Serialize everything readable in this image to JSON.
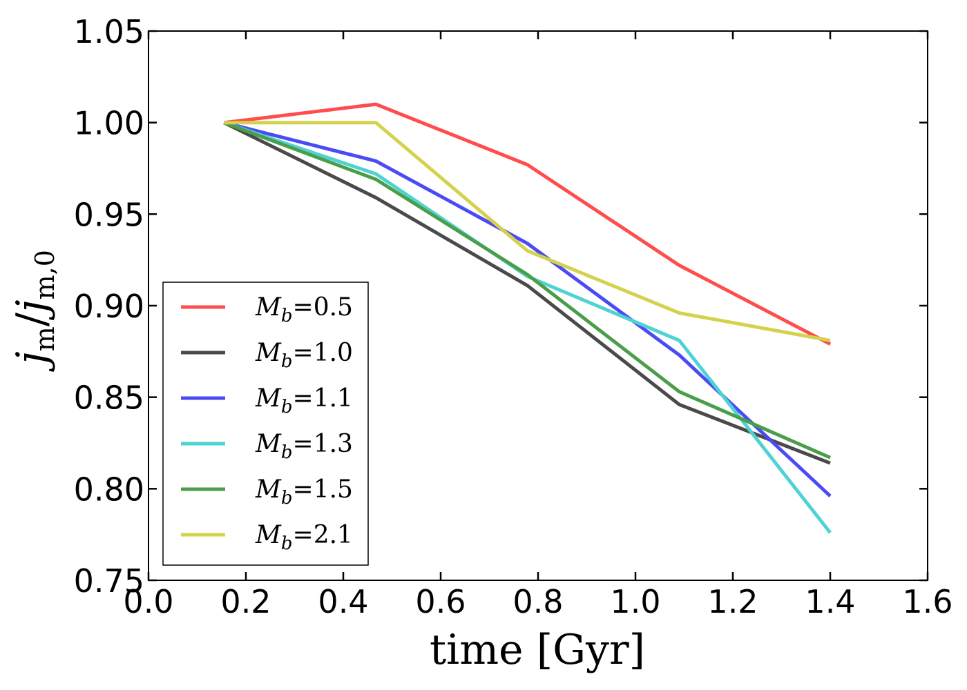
{
  "chart_data": {
    "type": "line",
    "title": "",
    "xlabel": "time   [Gyr]",
    "ylabel": "j_m / j_m,0",
    "ylabel_parts": {
      "main": "j",
      "sub1": "m",
      "slash": "/",
      "main2": "j",
      "sub2": "m,0"
    },
    "xlim": [
      0.0,
      1.6
    ],
    "ylim": [
      0.75,
      1.05
    ],
    "xticks": [
      0.0,
      0.2,
      0.4,
      0.6,
      0.8,
      1.0,
      1.2,
      1.4,
      1.6
    ],
    "xtick_labels": [
      "0.0",
      "0.2",
      "0.4",
      "0.6",
      "0.8",
      "1.0",
      "1.2",
      "1.4",
      "1.6"
    ],
    "yticks": [
      0.75,
      0.8,
      0.85,
      0.9,
      0.95,
      1.0,
      1.05
    ],
    "ytick_labels": [
      "0.75",
      "0.80",
      "0.85",
      "0.90",
      "0.95",
      "1.00",
      "1.05"
    ],
    "grid": false,
    "legend_position": "lower-left",
    "x": [
      0.155,
      0.467,
      0.778,
      1.09,
      1.4
    ],
    "series": [
      {
        "name": "M_b=0.5",
        "symbol": "M",
        "sub": "b",
        "value": "=0.5",
        "color": "#ff4d4d",
        "values": [
          1.0,
          1.01,
          0.977,
          0.922,
          0.879
        ]
      },
      {
        "name": "M_b=1.0",
        "symbol": "M",
        "sub": "b",
        "value": "=1.0",
        "color": "#4a4a4a",
        "values": [
          1.0,
          0.959,
          0.911,
          0.846,
          0.814
        ]
      },
      {
        "name": "M_b=1.1",
        "symbol": "M",
        "sub": "b",
        "value": "=1.1",
        "color": "#4b4bf6",
        "values": [
          1.0,
          0.979,
          0.934,
          0.873,
          0.796
        ]
      },
      {
        "name": "M_b=1.3",
        "symbol": "M",
        "sub": "b",
        "value": "=1.3",
        "color": "#4fd2d4",
        "values": [
          1.0,
          0.972,
          0.916,
          0.881,
          0.776
        ]
      },
      {
        "name": "M_b=1.5",
        "symbol": "M",
        "sub": "b",
        "value": "=1.5",
        "color": "#4a9e4a",
        "values": [
          1.0,
          0.969,
          0.917,
          0.853,
          0.817
        ]
      },
      {
        "name": "M_b=2.1",
        "symbol": "M",
        "sub": "b",
        "value": "=2.1",
        "color": "#d4d24d",
        "values": [
          1.0,
          1.0,
          0.93,
          0.896,
          0.881
        ]
      }
    ]
  }
}
